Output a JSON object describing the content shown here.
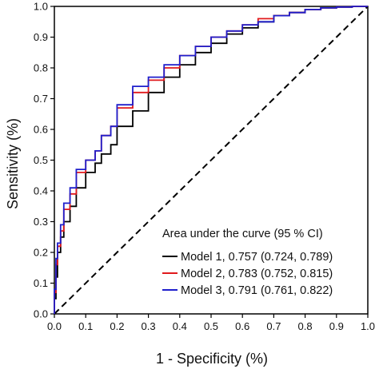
{
  "chart_data": {
    "type": "line",
    "title": "",
    "xlabel": "1 - Specificity (%)",
    "ylabel": "Sensitivity (%)",
    "xlim": [
      0,
      1
    ],
    "ylim": [
      0,
      1
    ],
    "x_ticks": [
      "0.0",
      "0.1",
      "0.2",
      "0.3",
      "0.4",
      "0.5",
      "0.6",
      "0.7",
      "0.8",
      "0.9",
      "1.0"
    ],
    "y_ticks": [
      "0.0",
      "0.1",
      "0.2",
      "0.3",
      "0.4",
      "0.5",
      "0.6",
      "0.7",
      "0.8",
      "0.9",
      "1.0"
    ],
    "grid": false,
    "legend_title": "Area under the curve (95 % CI)",
    "legend_position": "bottom-right",
    "reference_line": {
      "style": "dashed",
      "color": "#000000",
      "x": [
        0,
        1
      ],
      "y": [
        0,
        1
      ]
    },
    "series": [
      {
        "name": "Model 1, 0.757 (0.724, 0.789)",
        "color": "#000000",
        "x": [
          0,
          0.005,
          0.01,
          0.02,
          0.03,
          0.05,
          0.07,
          0.1,
          0.13,
          0.15,
          0.18,
          0.2,
          0.25,
          0.3,
          0.35,
          0.4,
          0.45,
          0.5,
          0.55,
          0.6,
          0.65,
          0.7,
          0.75,
          0.8,
          0.85,
          0.9,
          0.95,
          1.0
        ],
        "y": [
          0,
          0.05,
          0.12,
          0.2,
          0.25,
          0.3,
          0.35,
          0.41,
          0.46,
          0.49,
          0.52,
          0.55,
          0.61,
          0.66,
          0.72,
          0.77,
          0.81,
          0.85,
          0.88,
          0.91,
          0.93,
          0.95,
          0.97,
          0.98,
          0.99,
          0.995,
          0.998,
          1.0
        ]
      },
      {
        "name": "Model 2, 0.783 (0.752, 0.815)",
        "color": "#e0191c",
        "x": [
          0,
          0.005,
          0.01,
          0.02,
          0.03,
          0.05,
          0.07,
          0.1,
          0.13,
          0.15,
          0.18,
          0.2,
          0.25,
          0.3,
          0.35,
          0.4,
          0.45,
          0.5,
          0.55,
          0.6,
          0.65,
          0.7,
          0.75,
          0.8,
          0.85,
          0.9,
          0.95,
          1.0
        ],
        "y": [
          0,
          0.07,
          0.16,
          0.22,
          0.27,
          0.34,
          0.39,
          0.46,
          0.5,
          0.53,
          0.58,
          0.61,
          0.67,
          0.72,
          0.76,
          0.8,
          0.84,
          0.87,
          0.9,
          0.92,
          0.94,
          0.96,
          0.97,
          0.98,
          0.99,
          0.995,
          0.998,
          1.0
        ]
      },
      {
        "name": "Model 3, 0.791 (0.761, 0.822)",
        "color": "#1f1fcc",
        "x": [
          0,
          0.005,
          0.01,
          0.02,
          0.03,
          0.05,
          0.07,
          0.1,
          0.13,
          0.15,
          0.18,
          0.2,
          0.25,
          0.3,
          0.35,
          0.4,
          0.45,
          0.5,
          0.55,
          0.6,
          0.65,
          0.7,
          0.75,
          0.8,
          0.85,
          0.9,
          0.95,
          1.0
        ],
        "y": [
          0,
          0.08,
          0.18,
          0.23,
          0.29,
          0.36,
          0.41,
          0.47,
          0.5,
          0.53,
          0.58,
          0.61,
          0.68,
          0.74,
          0.77,
          0.81,
          0.84,
          0.87,
          0.9,
          0.92,
          0.94,
          0.95,
          0.97,
          0.98,
          0.99,
          0.995,
          0.998,
          1.0
        ]
      }
    ]
  }
}
